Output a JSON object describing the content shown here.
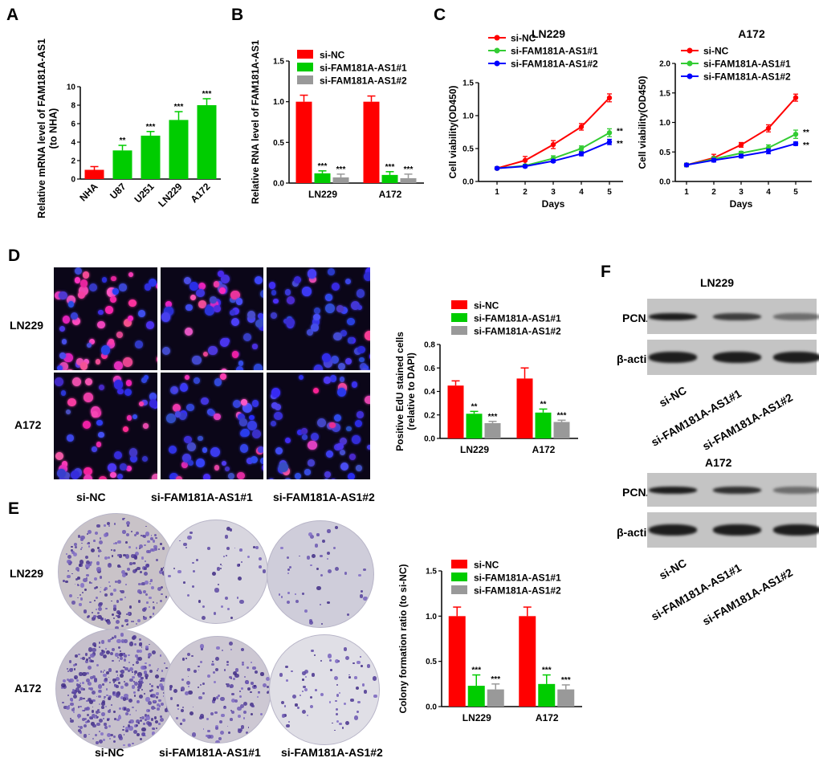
{
  "panels": {
    "A": "A",
    "B": "B",
    "C": "C",
    "D": "D",
    "E": "E",
    "F": "F"
  },
  "colors": {
    "nc": "#ff0000",
    "as1": "#00cc00",
    "as2": "#999999",
    "blue": "#0000ff",
    "green_line": "#33cc33"
  },
  "chart_data": [
    {
      "id": "A",
      "type": "bar",
      "ylabel": "Relative mRNA level of FAM181A-AS1\n(to NHA)",
      "categories": [
        "NHA",
        "U87",
        "U251",
        "LN229",
        "A172"
      ],
      "series": [
        {
          "values": [
            1.0,
            3.1,
            4.7,
            6.4,
            8.0
          ],
          "errors": [
            0.35,
            0.55,
            0.45,
            0.9,
            0.7
          ]
        }
      ],
      "bar_colors": [
        "#ff0000",
        "#00cc00",
        "#00cc00",
        "#00cc00",
        "#00cc00"
      ],
      "significance": [
        "",
        "**",
        "***",
        "***",
        "***"
      ],
      "ylim": [
        0,
        10
      ],
      "yticks": [
        "0",
        "2",
        "4",
        "6",
        "8",
        "10"
      ]
    },
    {
      "id": "B",
      "type": "bar",
      "ylabel": "Relative RNA level of FAM181A-AS1",
      "categories": [
        "LN229",
        "A172"
      ],
      "legend": [
        "si-NC",
        "si-FAM181A-AS1#1",
        "si-FAM181A-AS1#2"
      ],
      "series": [
        {
          "name": "si-NC",
          "values": [
            1.0,
            1.0
          ],
          "errors": [
            0.08,
            0.07
          ],
          "sig": [
            "",
            ""
          ]
        },
        {
          "name": "si-FAM181A-AS1#1",
          "values": [
            0.12,
            0.1
          ],
          "errors": [
            0.03,
            0.04
          ],
          "sig": [
            "***",
            "***"
          ]
        },
        {
          "name": "si-FAM181A-AS1#2",
          "values": [
            0.07,
            0.06
          ],
          "errors": [
            0.04,
            0.05
          ],
          "sig": [
            "***",
            "***"
          ]
        }
      ],
      "ylim": [
        0,
        1.5
      ],
      "yticks": [
        "0.0",
        "0.5",
        "1.0",
        "1.5"
      ]
    },
    {
      "id": "C1",
      "type": "line",
      "title": "LN229",
      "xlabel": "Days",
      "ylabel": "Cell viability(OD450)",
      "x": [
        1,
        2,
        3,
        4,
        5
      ],
      "legend": [
        "si-NC",
        "si-FAM181A-AS1#1",
        "si-FAM181A-AS1#2"
      ],
      "series": [
        {
          "name": "si-NC",
          "values": [
            0.2,
            0.32,
            0.56,
            0.83,
            1.27
          ],
          "errors": [
            0.02,
            0.06,
            0.06,
            0.05,
            0.06
          ]
        },
        {
          "name": "si-FAM181A-AS1#1",
          "values": [
            0.2,
            0.24,
            0.35,
            0.5,
            0.74
          ],
          "errors": [
            0.02,
            0.02,
            0.04,
            0.04,
            0.06
          ]
        },
        {
          "name": "si-FAM181A-AS1#2",
          "values": [
            0.2,
            0.23,
            0.31,
            0.42,
            0.6
          ],
          "errors": [
            0.02,
            0.02,
            0.02,
            0.03,
            0.04
          ]
        }
      ],
      "end_sig": [
        "**",
        "**"
      ],
      "ylim": [
        0,
        1.5
      ],
      "yticks": [
        "0.0",
        "0.5",
        "1.0",
        "1.5"
      ]
    },
    {
      "id": "C2",
      "type": "line",
      "title": "A172",
      "xlabel": "Days",
      "ylabel": "Cell viability(OD450)",
      "x": [
        1,
        2,
        3,
        4,
        5
      ],
      "legend": [
        "si-NC",
        "si-FAM181A-AS1#1",
        "si-FAM181A-AS1#2"
      ],
      "series": [
        {
          "name": "si-NC",
          "values": [
            0.28,
            0.4,
            0.62,
            0.9,
            1.42
          ],
          "errors": [
            0.03,
            0.06,
            0.04,
            0.06,
            0.06
          ]
        },
        {
          "name": "si-FAM181A-AS1#1",
          "values": [
            0.28,
            0.38,
            0.48,
            0.57,
            0.8
          ],
          "errors": [
            0.03,
            0.04,
            0.03,
            0.05,
            0.07
          ]
        },
        {
          "name": "si-FAM181A-AS1#2",
          "values": [
            0.28,
            0.36,
            0.43,
            0.51,
            0.64
          ],
          "errors": [
            0.02,
            0.03,
            0.03,
            0.04,
            0.03
          ]
        }
      ],
      "end_sig": [
        "**",
        "**"
      ],
      "ylim": [
        0,
        2.0
      ],
      "yticks": [
        "0.0",
        "0.5",
        "1.0",
        "1.5",
        "2.0"
      ]
    },
    {
      "id": "D",
      "type": "bar",
      "ylabel": "Positive EdU stained cells\n(relative to DAPI)",
      "categories": [
        "LN229",
        "A172"
      ],
      "legend": [
        "si-NC",
        "si-FAM181A-AS1#1",
        "si-FAM181A-AS1#2"
      ],
      "series": [
        {
          "name": "si-NC",
          "values": [
            0.45,
            0.51
          ],
          "errors": [
            0.04,
            0.09
          ],
          "sig": [
            "",
            ""
          ]
        },
        {
          "name": "si-FAM181A-AS1#1",
          "values": [
            0.21,
            0.22
          ],
          "errors": [
            0.02,
            0.03
          ],
          "sig": [
            "**",
            "**"
          ]
        },
        {
          "name": "si-FAM181A-AS1#2",
          "values": [
            0.13,
            0.14
          ],
          "errors": [
            0.015,
            0.015
          ],
          "sig": [
            "***",
            "***"
          ]
        }
      ],
      "ylim": [
        0,
        0.8
      ],
      "yticks": [
        "0.0",
        "0.2",
        "0.4",
        "0.6",
        "0.8"
      ]
    },
    {
      "id": "E",
      "type": "bar",
      "ylabel": "Colony formation ratio (to si-NC)",
      "categories": [
        "LN229",
        "A172"
      ],
      "legend": [
        "si-NC",
        "si-FAM181A-AS1#1",
        "si-FAM181A-AS1#2"
      ],
      "series": [
        {
          "name": "si-NC",
          "values": [
            1.0,
            1.0
          ],
          "errors": [
            0.1,
            0.1
          ],
          "sig": [
            "",
            ""
          ]
        },
        {
          "name": "si-FAM181A-AS1#1",
          "values": [
            0.23,
            0.25
          ],
          "errors": [
            0.12,
            0.1
          ],
          "sig": [
            "***",
            "***"
          ]
        },
        {
          "name": "si-FAM181A-AS1#2",
          "values": [
            0.19,
            0.19
          ],
          "errors": [
            0.06,
            0.05
          ],
          "sig": [
            "***",
            "***"
          ]
        }
      ],
      "ylim": [
        0,
        1.5
      ],
      "yticks": [
        "0.0",
        "0.5",
        "1.0",
        "1.5"
      ]
    }
  ],
  "image_panels": {
    "D": {
      "rows": [
        "LN229",
        "A172"
      ],
      "columns": [
        "si-NC",
        "si-FAM181A-AS1#1",
        "si-FAM181A-AS1#2"
      ]
    },
    "E": {
      "rows": [
        "LN229",
        "A172"
      ],
      "columns": [
        "si-NC",
        "si-FAM181A-AS1#1",
        "si-FAM181A-AS1#2"
      ]
    }
  },
  "western": {
    "blots": [
      {
        "title": "LN229",
        "rows": [
          "PCNA",
          "β-actin"
        ],
        "pcna_intensity": [
          1.0,
          0.75,
          0.35
        ],
        "actin_intensity": [
          1.0,
          1.0,
          1.0
        ]
      },
      {
        "title": "A172",
        "rows": [
          "PCNA",
          "β-actin"
        ],
        "pcna_intensity": [
          1.0,
          0.85,
          0.35
        ],
        "actin_intensity": [
          1.0,
          1.0,
          1.0
        ]
      }
    ],
    "lanes": [
      "si-NC",
      "si-FAM181A-AS1#1",
      "si-FAM181A-AS1#2"
    ]
  }
}
